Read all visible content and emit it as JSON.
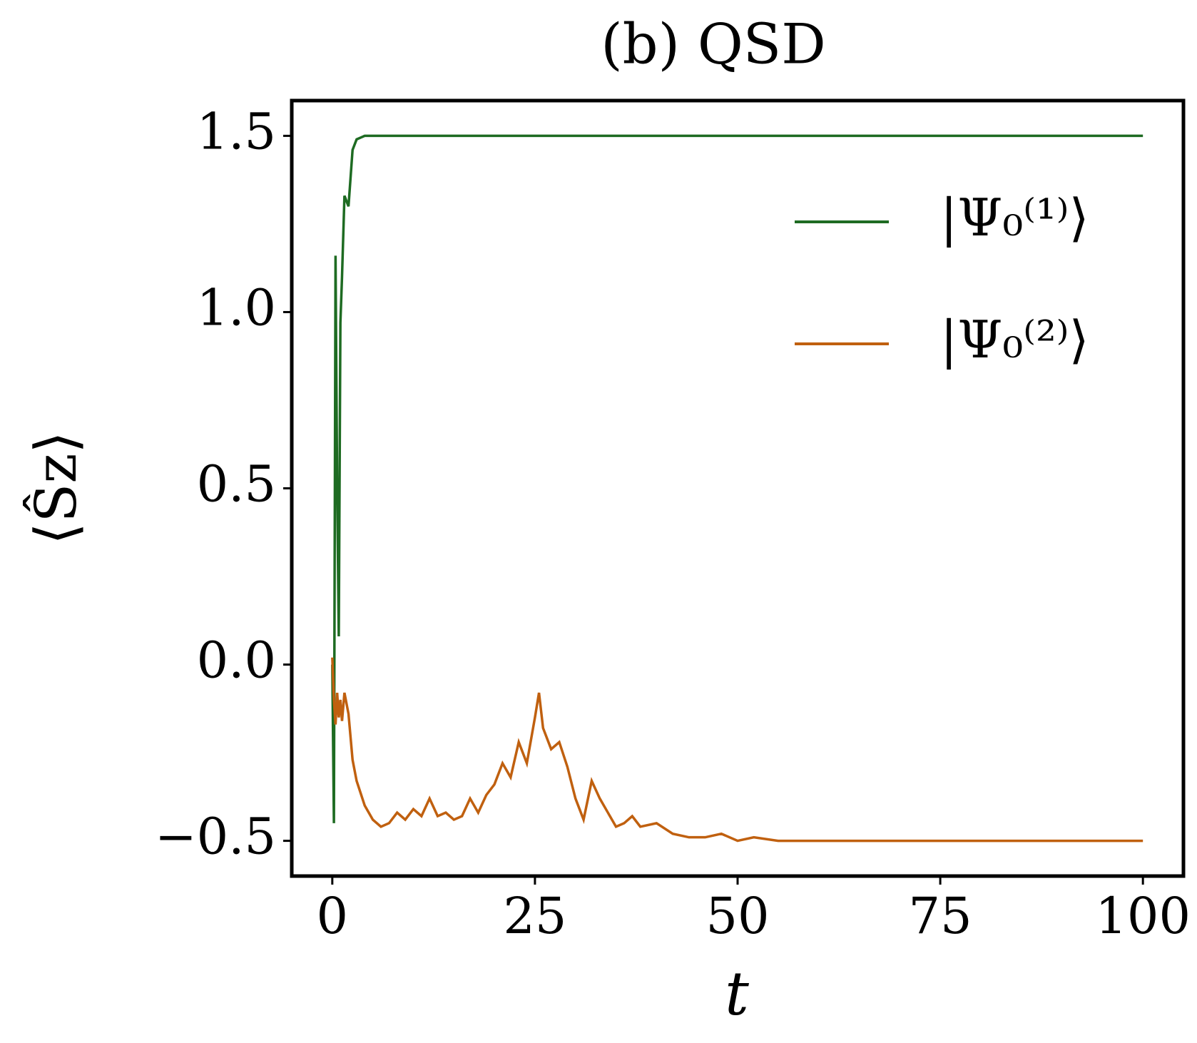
{
  "chart_data": {
    "type": "line",
    "title": "(b) QSD",
    "xlabel": "t",
    "ylabel": "⟨Ŝz⟩",
    "x": [
      0,
      0.2,
      0.4,
      0.6,
      0.8,
      1,
      1.2,
      1.5,
      2,
      2.5,
      3,
      4,
      5,
      6,
      7,
      8,
      9,
      10,
      11,
      12,
      13,
      14,
      15,
      16,
      17,
      18,
      19,
      20,
      21,
      22,
      23,
      24,
      25,
      25.5,
      26,
      27,
      28,
      29,
      30,
      31,
      32,
      33,
      34,
      35,
      36,
      37,
      38,
      40,
      42,
      44,
      46,
      48,
      50,
      52,
      55,
      58,
      60,
      65,
      70,
      80,
      90,
      100
    ],
    "series": [
      {
        "name": "|Ψ₀⁽¹⁾⟩",
        "color": "#1e6b22",
        "values": [
          0,
          -0.45,
          1.16,
          0.5,
          0.08,
          0.97,
          1.1,
          1.33,
          1.3,
          1.46,
          1.49,
          1.5,
          1.5,
          1.5,
          1.5,
          1.5,
          1.5,
          1.5,
          1.5,
          1.5,
          1.5,
          1.5,
          1.5,
          1.5,
          1.5,
          1.5,
          1.5,
          1.5,
          1.5,
          1.5,
          1.5,
          1.5,
          1.5,
          1.5,
          1.5,
          1.5,
          1.5,
          1.5,
          1.5,
          1.5,
          1.5,
          1.5,
          1.5,
          1.5,
          1.5,
          1.5,
          1.5,
          1.5,
          1.5,
          1.5,
          1.5,
          1.5,
          1.5,
          1.5,
          1.5,
          1.5,
          1.5,
          1.5,
          1.5,
          1.5,
          1.5,
          1.5
        ]
      },
      {
        "name": "|Ψ₀⁽²⁾⟩",
        "color": "#c0600f",
        "values": [
          0.02,
          -0.1,
          -0.17,
          -0.08,
          -0.15,
          -0.1,
          -0.16,
          -0.08,
          -0.14,
          -0.27,
          -0.33,
          -0.4,
          -0.44,
          -0.46,
          -0.45,
          -0.42,
          -0.44,
          -0.41,
          -0.43,
          -0.38,
          -0.43,
          -0.42,
          -0.44,
          -0.43,
          -0.38,
          -0.42,
          -0.37,
          -0.34,
          -0.28,
          -0.32,
          -0.22,
          -0.28,
          -0.15,
          -0.08,
          -0.18,
          -0.24,
          -0.22,
          -0.29,
          -0.38,
          -0.44,
          -0.33,
          -0.38,
          -0.42,
          -0.46,
          -0.45,
          -0.43,
          -0.46,
          -0.45,
          -0.48,
          -0.49,
          -0.49,
          -0.48,
          -0.5,
          -0.49,
          -0.5,
          -0.5,
          -0.5,
          -0.5,
          -0.5,
          -0.5,
          -0.5,
          -0.5
        ]
      }
    ],
    "xlim": [
      -5,
      105
    ],
    "ylim": [
      -0.6,
      1.6
    ],
    "xticks": [
      0,
      25,
      50,
      75,
      100
    ],
    "yticks": [
      {
        "value": -0.5,
        "label": "−0.5"
      },
      {
        "value": 0,
        "label": "0.0"
      },
      {
        "value": 0.5,
        "label": "0.5"
      },
      {
        "value": 1,
        "label": "1.0"
      },
      {
        "value": 1.5,
        "label": "1.5"
      }
    ],
    "grid": false,
    "legend": "upper right"
  }
}
